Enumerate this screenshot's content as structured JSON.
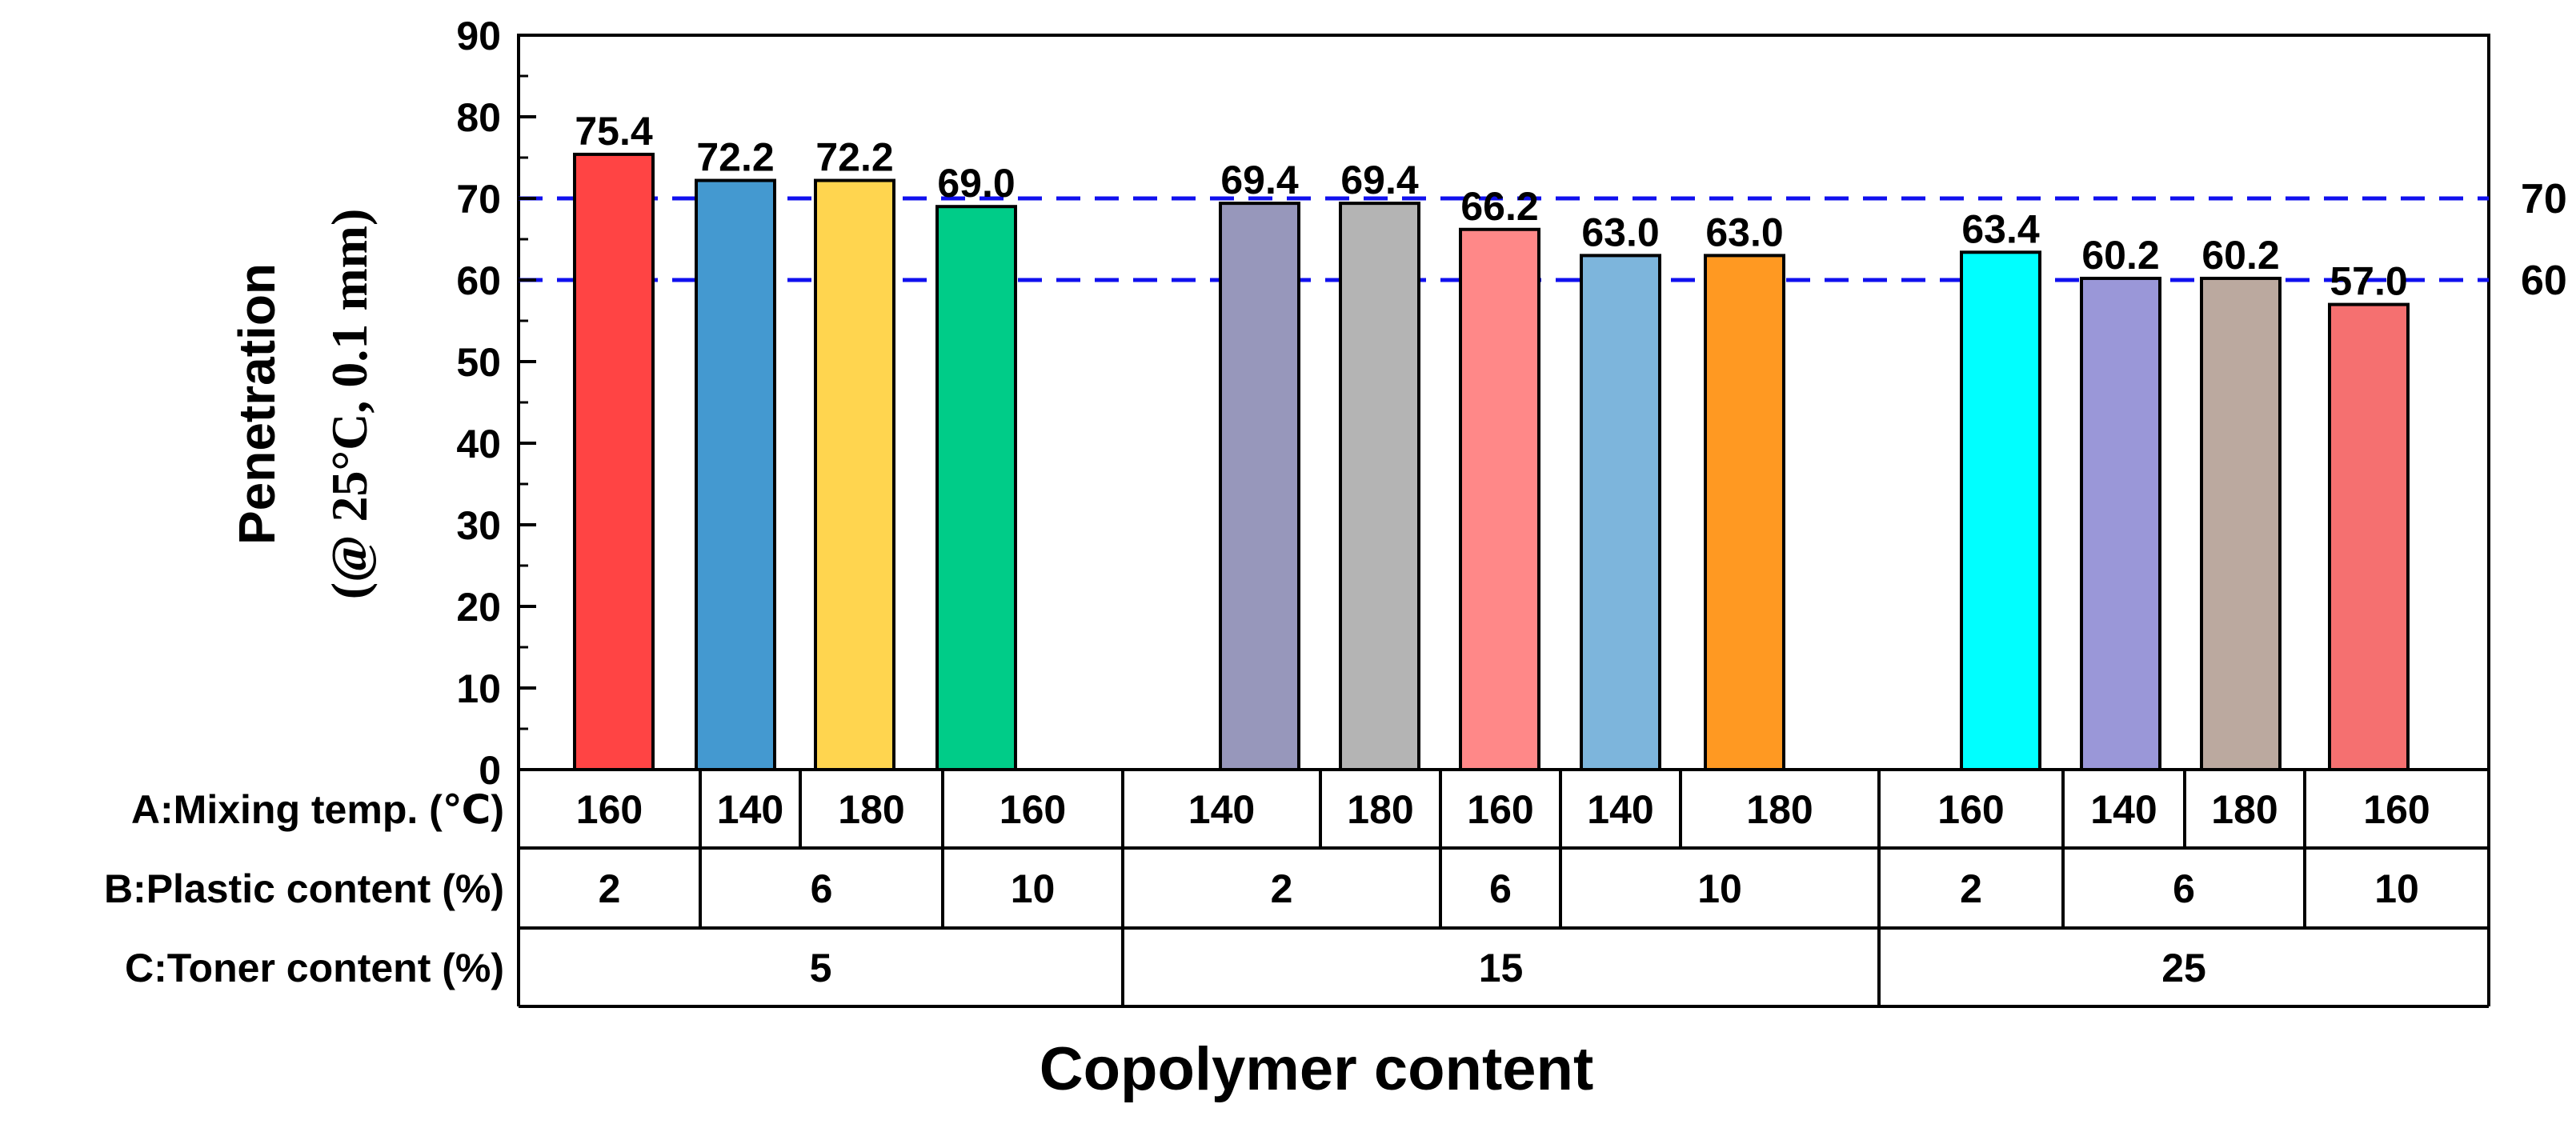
{
  "chart_data": {
    "type": "bar",
    "ylabel_line1": "Penetration",
    "ylabel_line2": "(@ 25°C, 0.1 mm)",
    "xlabel": "Copolymer content",
    "ylim": [
      0,
      90
    ],
    "yticks": [
      0,
      10,
      20,
      30,
      40,
      50,
      60,
      70,
      80,
      90
    ],
    "grid": false,
    "reference_lines": [
      {
        "value": 70,
        "label": "70",
        "color": "#1010ee"
      },
      {
        "value": 60,
        "label": "60",
        "color": "#1010ee"
      }
    ],
    "bars": [
      {
        "value": 75.4,
        "label": "75.4",
        "color": "#ff4444"
      },
      {
        "value": 72.2,
        "label": "72.2",
        "color": "#4499d0"
      },
      {
        "value": 72.2,
        "label": "72.2",
        "color": "#ffd54f"
      },
      {
        "value": 69.0,
        "label": "69.0",
        "color": "#00cc88"
      },
      {
        "value": 69.4,
        "label": "69.4",
        "color": "#9797bb"
      },
      {
        "value": 69.4,
        "label": "69.4",
        "color": "#b4b4b4"
      },
      {
        "value": 66.2,
        "label": "66.2",
        "color": "#ff8888"
      },
      {
        "value": 63.0,
        "label": "63.0",
        "color": "#7db5dc"
      },
      {
        "value": 63.0,
        "label": "63.0",
        "color": "#ff9922"
      },
      {
        "value": 63.4,
        "label": "63.4",
        "color": "#00ffff"
      },
      {
        "value": 60.2,
        "label": "60.2",
        "color": "#9a97d8"
      },
      {
        "value": 60.2,
        "label": "60.2",
        "color": "#bba99f"
      },
      {
        "value": 57.0,
        "label": "57.0",
        "color": "#f57070"
      }
    ],
    "factor_table": {
      "rows": [
        {
          "label": "A:Mixing temp. (℃)",
          "cells": [
            "160",
            "140",
            "180",
            "160",
            "140",
            "180",
            "160",
            "140",
            "180",
            "160",
            "140",
            "180",
            "160"
          ]
        },
        {
          "label": "B:Plastic content (%)",
          "cells": [
            "2",
            "6",
            "10",
            "2",
            "6",
            "10",
            "2",
            "6",
            "10"
          ]
        },
        {
          "label": "C:Toner content (%)",
          "cells": [
            "5",
            "15",
            "25"
          ]
        }
      ]
    }
  }
}
